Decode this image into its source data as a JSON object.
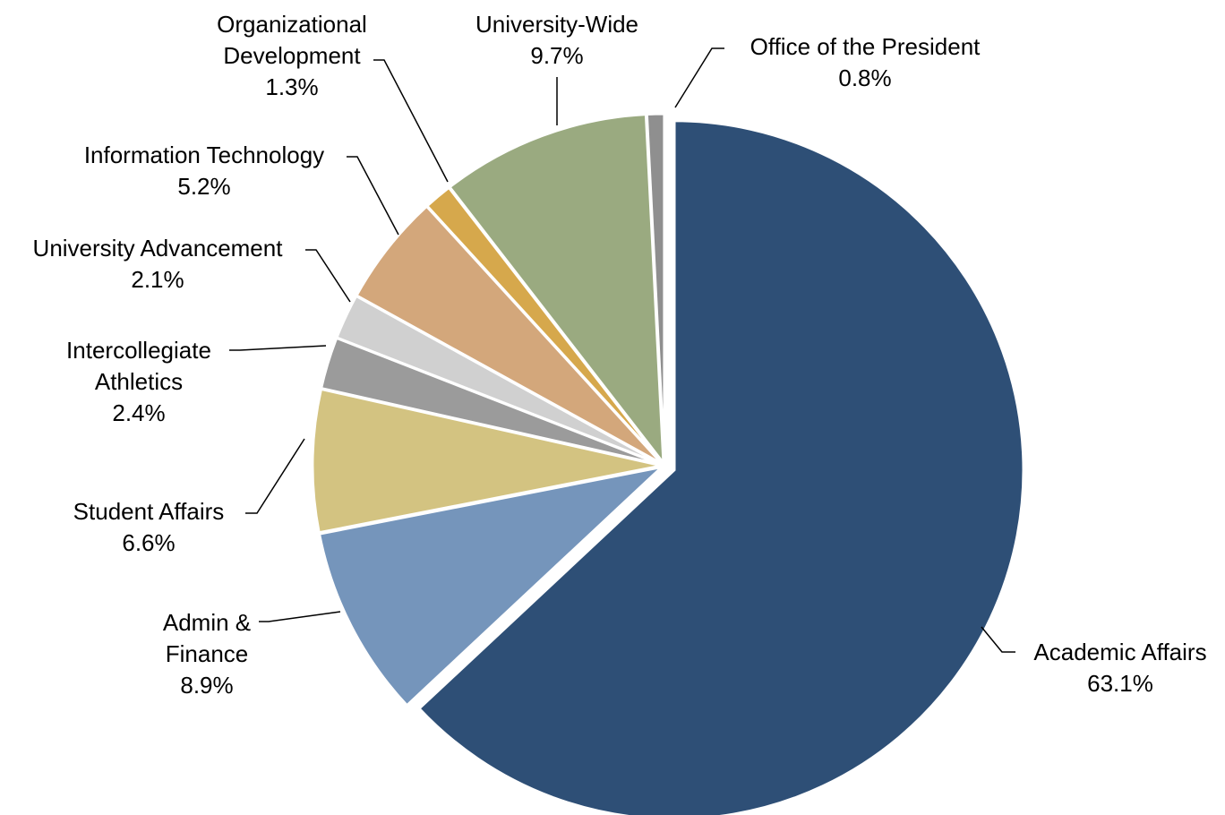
{
  "chart_data": {
    "type": "pie",
    "title": "",
    "start_angle_deg": 0,
    "direction": "clockwise",
    "slices": [
      {
        "label_lines": [
          "Academic Affairs"
        ],
        "value_label": "63.1%",
        "value": 63.1,
        "color": "#2e4f76"
      },
      {
        "label_lines": [
          "Admin &",
          "Finance"
        ],
        "value_label": "8.9%",
        "value": 8.9,
        "color": "#7595bb"
      },
      {
        "label_lines": [
          "Student  Affairs"
        ],
        "value_label": "6.6%",
        "value": 6.6,
        "color": "#d3c381"
      },
      {
        "label_lines": [
          "Intercollegiate",
          "Athletics"
        ],
        "value_label": "2.4%",
        "value": 2.4,
        "color": "#9b9b9b"
      },
      {
        "label_lines": [
          "University Advancement"
        ],
        "value_label": "2.1%",
        "value": 2.1,
        "color": "#d0d0d0"
      },
      {
        "label_lines": [
          "Information Technology"
        ],
        "value_label": "5.2%",
        "value": 5.2,
        "color": "#d3a77b"
      },
      {
        "label_lines": [
          "Organizational",
          "Development"
        ],
        "value_label": "1.3%",
        "value": 1.3,
        "color": "#d6a84c"
      },
      {
        "label_lines": [
          "University-Wide"
        ],
        "value_label": "9.7%",
        "value": 9.7,
        "color": "#9aaa80"
      },
      {
        "label_lines": [
          "Office of the President"
        ],
        "value_label": "0.8%",
        "value": 0.8,
        "color": "#8f8f8f"
      }
    ]
  }
}
